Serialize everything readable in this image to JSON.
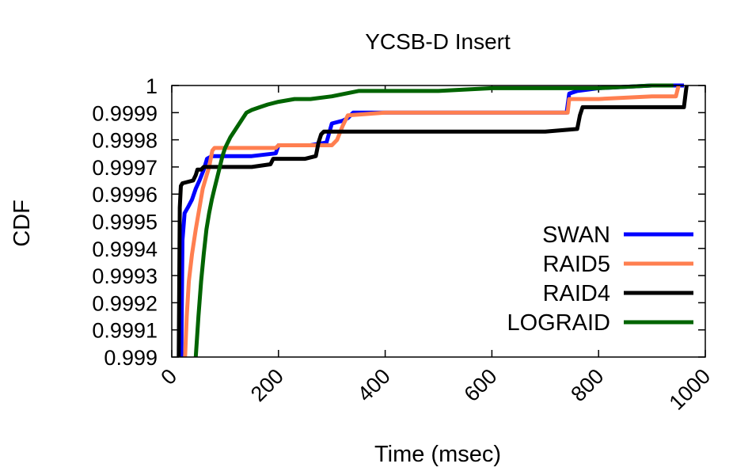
{
  "chart_data": {
    "type": "line",
    "title": "YCSB-D Insert",
    "xlabel": "Time (msec)",
    "ylabel": "CDF",
    "xlim": [
      0,
      1000
    ],
    "ylim": [
      0.999,
      1
    ],
    "xticks": [
      "0",
      "200",
      "400",
      "600",
      "800",
      "1000"
    ],
    "yticks": [
      "0.999",
      "0.9991",
      "0.9992",
      "0.9993",
      "0.9994",
      "0.9995",
      "0.9996",
      "0.9997",
      "0.9998",
      "0.9999",
      "1"
    ],
    "grid": false,
    "legend_position": "bottom-right",
    "series": [
      {
        "name": "SWAN",
        "color": "#0000ff",
        "x": [
          18,
          20,
          24,
          30,
          38,
          45,
          52,
          60,
          66,
          75,
          100,
          150,
          195,
          200,
          260,
          290,
          300,
          320,
          330,
          340,
          400,
          500,
          600,
          700,
          740,
          745,
          760,
          800,
          900,
          960
        ],
        "y": [
          0.999,
          0.99943,
          0.99953,
          0.99955,
          0.99958,
          0.99962,
          0.99965,
          0.99969,
          0.99973,
          0.99974,
          0.99974,
          0.99974,
          0.99975,
          0.99978,
          0.99978,
          0.99979,
          0.99986,
          0.99987,
          0.99988,
          0.9999,
          0.9999,
          0.9999,
          0.9999,
          0.9999,
          0.9999,
          0.99997,
          0.99998,
          0.99999,
          1.0,
          1.0
        ]
      },
      {
        "name": "RAID5",
        "color": "#ff7f50",
        "x": [
          25,
          28,
          32,
          38,
          45,
          52,
          58,
          64,
          70,
          76,
          80,
          100,
          150,
          195,
          200,
          250,
          300,
          310,
          320,
          330,
          400,
          500,
          600,
          700,
          742,
          745,
          800,
          900,
          945,
          950
        ],
        "y": [
          0.999,
          0.99915,
          0.99928,
          0.99938,
          0.99947,
          0.99955,
          0.99962,
          0.99966,
          0.9997,
          0.99976,
          0.99977,
          0.99977,
          0.99977,
          0.99977,
          0.99978,
          0.99978,
          0.99978,
          0.9998,
          0.99985,
          0.99989,
          0.9999,
          0.9999,
          0.9999,
          0.9999,
          0.9999,
          0.99995,
          0.99995,
          0.99996,
          0.99996,
          1.0
        ]
      },
      {
        "name": "RAID4",
        "color": "#000000",
        "x": [
          13,
          15,
          17,
          20,
          40,
          45,
          48,
          55,
          60,
          100,
          150,
          185,
          190,
          250,
          270,
          275,
          280,
          285,
          300,
          400,
          500,
          600,
          700,
          760,
          765,
          770,
          800,
          900,
          960,
          965
        ],
        "y": [
          0.999,
          0.99955,
          0.99963,
          0.99964,
          0.99965,
          0.99967,
          0.99969,
          0.99969,
          0.9997,
          0.9997,
          0.9997,
          0.99971,
          0.99973,
          0.99973,
          0.99974,
          0.99979,
          0.99982,
          0.99983,
          0.99983,
          0.99983,
          0.99983,
          0.99983,
          0.99983,
          0.99984,
          0.99989,
          0.99992,
          0.99992,
          0.99992,
          0.99992,
          1.0
        ]
      },
      {
        "name": "LOGRAID",
        "color": "#006400",
        "x": [
          45,
          50,
          55,
          60,
          65,
          70,
          75,
          80,
          85,
          90,
          95,
          100,
          110,
          120,
          130,
          140,
          150,
          165,
          180,
          200,
          230,
          260,
          300,
          350,
          400,
          500,
          600,
          700,
          800,
          900,
          940
        ],
        "y": [
          0.999,
          0.99915,
          0.99928,
          0.99938,
          0.99947,
          0.99953,
          0.99958,
          0.99962,
          0.99966,
          0.9997,
          0.99974,
          0.99977,
          0.99981,
          0.99984,
          0.99987,
          0.9999,
          0.99991,
          0.99992,
          0.99993,
          0.99994,
          0.99995,
          0.99995,
          0.99996,
          0.99998,
          0.99998,
          0.99998,
          0.99999,
          0.99999,
          0.99999,
          1.0,
          1.0
        ]
      }
    ]
  }
}
